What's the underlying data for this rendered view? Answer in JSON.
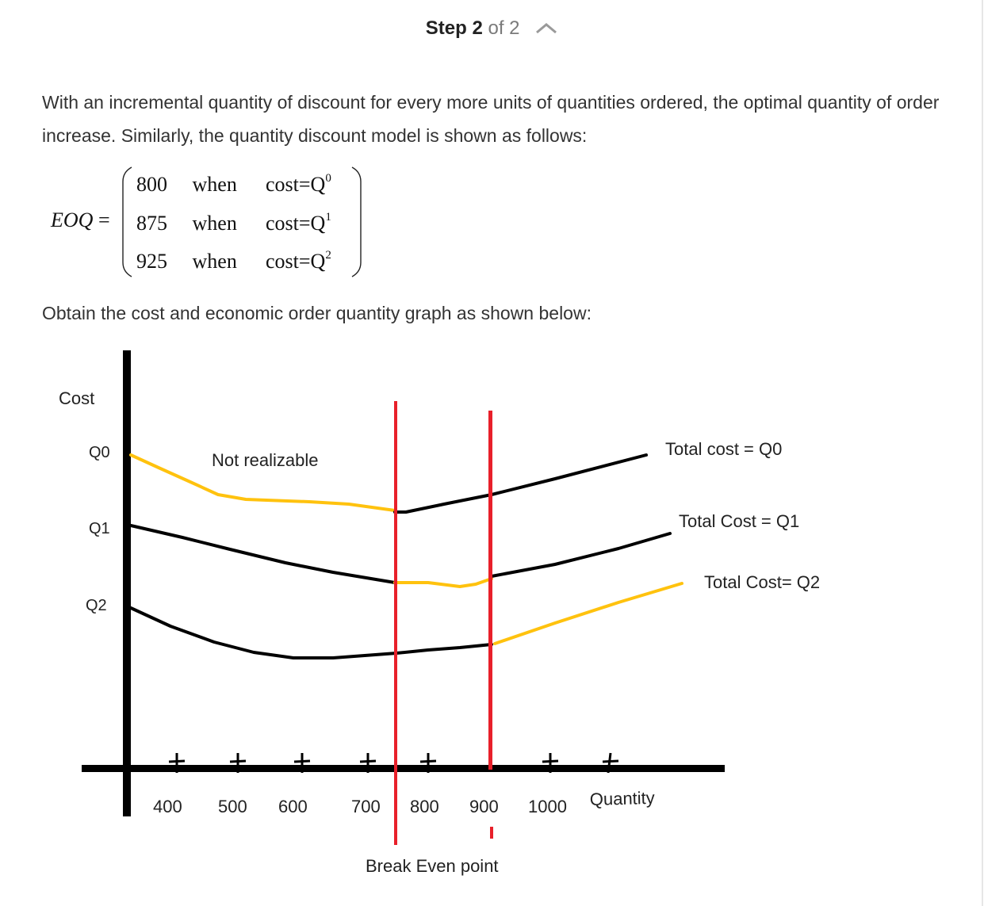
{
  "step": {
    "label": "Step 2",
    "of": "of 2"
  },
  "text": {
    "intro": "With an incremental quantity of discount for every more units of quantities ordered, the optimal quantity of order increase. Similarly, the quantity discount model is shown as follows:",
    "graph_intro": "Obtain the cost and economic order quantity graph as shown below:"
  },
  "equation": {
    "lhs": "EOQ",
    "equals": "=",
    "rows": [
      {
        "value": "800",
        "word": "when",
        "cost": "cost=Q",
        "exp": "0"
      },
      {
        "value": "875",
        "word": "when",
        "cost": "cost=Q",
        "exp": "1"
      },
      {
        "value": "925",
        "word": "when",
        "cost": "cost=Q",
        "exp": "2"
      }
    ]
  },
  "chart_data": {
    "type": "line",
    "ylabel": "Cost",
    "xlabel": "Quantity",
    "y_ticks": [
      "Q0",
      "Q1",
      "Q2"
    ],
    "x_ticks": [
      "400",
      "500",
      "600",
      "700",
      "800",
      "900",
      "1000"
    ],
    "annotations": [
      "Not realizable",
      "Break Even point"
    ],
    "curve_labels": [
      "Total cost = Q0",
      "Total Cost = Q1",
      "Total Cost= Q2"
    ],
    "colors": {
      "axis": "#000000",
      "feasible": "#000000",
      "realizable": "#ffc20e",
      "break_even": "#e8202a"
    }
  }
}
